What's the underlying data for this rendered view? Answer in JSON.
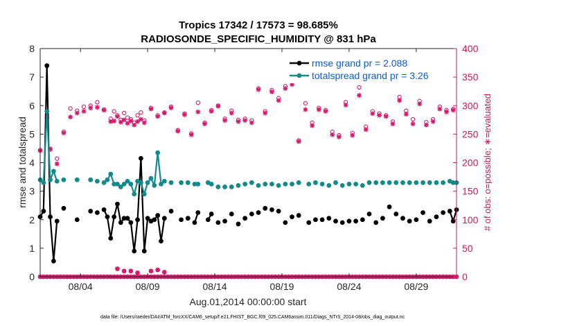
{
  "chart_data": {
    "type": "line",
    "title_line1": "Tropics 17342 / 17573 = 98.685%",
    "title_line2": "RADIOSONDE_SPECIFIC_HUMIDITY @ 831 hPa",
    "ylabel_left": "rmse and totalspread",
    "ylabel_right": "# of obs: o=possible; ∗=evaluated",
    "xlabel": "Aug.01,2014 00:00:00 start",
    "footnote": "data file: /Users/raeder/DAI/ATM_forcXX/CAM6_setup/f.e21.FHIST_BGC.f09_025.CAM6assim.011/Diags_NTrS_2014-08/obs_diag_output.nc",
    "x_range": [
      1.0,
      32.0
    ],
    "ylim_left": [
      0,
      8
    ],
    "ylim_right": [
      0,
      400
    ],
    "left_ticks": [
      "0",
      "1",
      "2",
      "3",
      "4",
      "5",
      "6",
      "7",
      "8"
    ],
    "right_ticks": [
      "0",
      "50",
      "100",
      "150",
      "200",
      "250",
      "300",
      "350",
      "400"
    ],
    "x_ticks": [
      {
        "x": 4,
        "label": "08/04"
      },
      {
        "x": 9,
        "label": "08/09"
      },
      {
        "x": 14,
        "label": "08/14"
      },
      {
        "x": 19,
        "label": "08/19"
      },
      {
        "x": 24,
        "label": "08/24"
      },
      {
        "x": 29,
        "label": "08/29"
      }
    ],
    "colors": {
      "rmse": "#000000",
      "spread": "#138a8a",
      "obs": "#d6186a",
      "legend_text": "#0a5ad8",
      "axis": "#262626"
    },
    "legend": [
      {
        "name": "rmse grand pr = 2.088",
        "series": "rmse"
      },
      {
        "name": "totalspread grand pr = 3.26",
        "series": "spread"
      }
    ],
    "series": [
      {
        "name": "rmse",
        "color": "#000000",
        "points": [
          [
            1.0,
            2.1
          ],
          [
            1.25,
            2.3
          ],
          [
            1.5,
            7.4
          ],
          [
            1.75,
            2.1
          ],
          [
            2.0,
            0.55
          ],
          [
            2.25,
            1.95
          ],
          [
            2.75,
            2.4
          ],
          [
            3.75,
            2.0
          ],
          [
            4.75,
            2.3
          ],
          [
            5.25,
            2.25
          ],
          [
            5.75,
            2.35
          ],
          [
            6.0,
            2.1
          ],
          [
            6.25,
            1.35
          ],
          [
            6.5,
            2.1
          ],
          [
            6.75,
            2.55
          ],
          [
            7.0,
            1.9
          ],
          [
            7.25,
            2.05
          ],
          [
            7.5,
            2.05
          ],
          [
            7.75,
            1.9
          ],
          [
            8.0,
            0.9
          ],
          [
            8.25,
            2.0
          ],
          [
            8.5,
            4.15
          ],
          [
            8.75,
            0.9
          ],
          [
            9.0,
            2.05
          ],
          [
            9.25,
            1.95
          ],
          [
            9.5,
            2.0
          ],
          [
            9.75,
            2.15
          ],
          [
            10.0,
            1.25
          ],
          [
            10.25,
            2.05
          ],
          [
            10.75,
            2.3
          ],
          [
            11.5,
            2.0
          ],
          [
            12.0,
            2.05
          ],
          [
            12.5,
            1.9
          ],
          [
            12.75,
            2.25
          ],
          [
            13.5,
            2.0
          ],
          [
            13.75,
            2.2
          ],
          [
            14.25,
            1.9
          ],
          [
            14.75,
            1.95
          ],
          [
            15.25,
            2.2
          ],
          [
            15.75,
            1.85
          ],
          [
            16.25,
            2.05
          ],
          [
            16.75,
            2.2
          ],
          [
            17.25,
            2.25
          ],
          [
            17.75,
            2.4
          ],
          [
            18.25,
            2.35
          ],
          [
            18.75,
            2.3
          ],
          [
            19.25,
            1.9
          ],
          [
            19.75,
            2.1
          ],
          [
            20.25,
            2.15
          ],
          [
            21.0,
            1.9
          ],
          [
            21.5,
            2.0
          ],
          [
            22.0,
            2.0
          ],
          [
            22.5,
            2.05
          ],
          [
            23.0,
            1.95
          ],
          [
            23.5,
            1.9
          ],
          [
            24.0,
            1.95
          ],
          [
            24.5,
            1.95
          ],
          [
            25.0,
            2.0
          ],
          [
            25.5,
            2.2
          ],
          [
            26.0,
            1.9
          ],
          [
            26.5,
            2.05
          ],
          [
            27.0,
            2.45
          ],
          [
            27.5,
            2.2
          ],
          [
            28.0,
            2.05
          ],
          [
            28.5,
            1.95
          ],
          [
            29.0,
            2.0
          ],
          [
            29.5,
            2.25
          ],
          [
            30.0,
            1.95
          ],
          [
            30.5,
            2.1
          ],
          [
            31.0,
            2.25
          ],
          [
            31.5,
            2.3
          ],
          [
            31.75,
            1.95
          ],
          [
            32.0,
            2.35
          ]
        ]
      },
      {
        "name": "totalspread",
        "color": "#138a8a",
        "points": [
          [
            1.0,
            3.4
          ],
          [
            1.25,
            3.3
          ],
          [
            1.5,
            5.8
          ],
          [
            1.75,
            3.4
          ],
          [
            2.0,
            3.7
          ],
          [
            2.25,
            3.35
          ],
          [
            2.75,
            3.4
          ],
          [
            3.75,
            3.4
          ],
          [
            4.75,
            3.4
          ],
          [
            5.25,
            3.35
          ],
          [
            5.75,
            3.3
          ],
          [
            6.0,
            3.4
          ],
          [
            6.25,
            3.6
          ],
          [
            6.5,
            3.25
          ],
          [
            6.75,
            3.25
          ],
          [
            7.0,
            3.15
          ],
          [
            7.25,
            3.25
          ],
          [
            7.5,
            3.35
          ],
          [
            7.75,
            3.25
          ],
          [
            8.0,
            2.9
          ],
          [
            8.25,
            3.35
          ],
          [
            8.5,
            3.3
          ],
          [
            8.75,
            2.9
          ],
          [
            9.0,
            3.3
          ],
          [
            9.25,
            3.45
          ],
          [
            9.5,
            3.2
          ],
          [
            9.75,
            4.35
          ],
          [
            10.0,
            3.25
          ],
          [
            10.25,
            3.35
          ],
          [
            10.75,
            3.3
          ],
          [
            11.5,
            3.3
          ],
          [
            12.0,
            3.3
          ],
          [
            12.5,
            3.25
          ],
          [
            12.75,
            3.25
          ],
          [
            13.5,
            3.3
          ],
          [
            13.75,
            3.25
          ],
          [
            14.25,
            3.15
          ],
          [
            14.75,
            3.15
          ],
          [
            15.25,
            3.15
          ],
          [
            15.75,
            3.2
          ],
          [
            16.25,
            3.25
          ],
          [
            16.75,
            3.3
          ],
          [
            17.25,
            3.2
          ],
          [
            17.75,
            3.25
          ],
          [
            18.25,
            3.25
          ],
          [
            18.75,
            3.2
          ],
          [
            19.25,
            3.25
          ],
          [
            19.75,
            3.25
          ],
          [
            20.25,
            3.3
          ],
          [
            21.0,
            3.25
          ],
          [
            21.5,
            3.3
          ],
          [
            22.0,
            3.25
          ],
          [
            22.5,
            3.2
          ],
          [
            23.0,
            3.3
          ],
          [
            23.5,
            3.2
          ],
          [
            24.0,
            3.25
          ],
          [
            24.5,
            3.25
          ],
          [
            25.0,
            3.2
          ],
          [
            25.5,
            3.3
          ],
          [
            26.0,
            3.3
          ],
          [
            26.5,
            3.3
          ],
          [
            27.0,
            3.3
          ],
          [
            27.5,
            3.3
          ],
          [
            28.0,
            3.3
          ],
          [
            28.5,
            3.3
          ],
          [
            29.0,
            3.3
          ],
          [
            29.5,
            3.3
          ],
          [
            30.0,
            3.3
          ],
          [
            30.5,
            3.3
          ],
          [
            31.0,
            3.3
          ],
          [
            31.5,
            3.35
          ],
          [
            31.75,
            3.3
          ],
          [
            32.0,
            3.3
          ]
        ]
      }
    ],
    "obs_possible": [
      [
        1.0,
        222
      ],
      [
        1.5,
        284
      ],
      [
        1.75,
        223
      ],
      [
        2.25,
        207
      ],
      [
        2.75,
        254
      ],
      [
        3.25,
        295
      ],
      [
        3.75,
        291
      ],
      [
        4.25,
        298
      ],
      [
        4.75,
        300
      ],
      [
        5.25,
        306
      ],
      [
        5.75,
        293
      ],
      [
        6.25,
        277
      ],
      [
        6.5,
        290
      ],
      [
        6.75,
        283
      ],
      [
        7.0,
        275
      ],
      [
        7.25,
        287
      ],
      [
        7.5,
        279
      ],
      [
        7.75,
        276
      ],
      [
        8.0,
        270
      ],
      [
        8.25,
        283
      ],
      [
        8.5,
        288
      ],
      [
        8.75,
        274
      ],
      [
        9.25,
        296
      ],
      [
        9.75,
        283
      ],
      [
        10.25,
        288
      ],
      [
        10.75,
        298
      ],
      [
        11.25,
        257
      ],
      [
        11.75,
        286
      ],
      [
        12.25,
        251
      ],
      [
        12.75,
        305
      ],
      [
        13.25,
        270
      ],
      [
        13.75,
        292
      ],
      [
        14.25,
        300
      ],
      [
        14.75,
        277
      ],
      [
        15.25,
        291
      ],
      [
        15.75,
        275
      ],
      [
        16.25,
        277
      ],
      [
        16.75,
        274
      ],
      [
        17.25,
        330
      ],
      [
        17.75,
        290
      ],
      [
        18.25,
        327
      ],
      [
        18.75,
        313
      ],
      [
        19.25,
        334
      ],
      [
        19.75,
        341
      ],
      [
        20.25,
        239
      ],
      [
        20.75,
        304
      ],
      [
        21.25,
        270
      ],
      [
        21.75,
        296
      ],
      [
        22.25,
        292
      ],
      [
        22.75,
        254
      ],
      [
        23.25,
        248
      ],
      [
        23.75,
        306
      ],
      [
        24.25,
        252
      ],
      [
        24.75,
        332
      ],
      [
        25.25,
        263
      ],
      [
        25.75,
        290
      ],
      [
        26.25,
        286
      ],
      [
        26.75,
        283
      ],
      [
        27.25,
        272
      ],
      [
        27.75,
        315
      ],
      [
        28.25,
        291
      ],
      [
        28.75,
        276
      ],
      [
        29.25,
        308
      ],
      [
        29.75,
        271
      ],
      [
        30.25,
        276
      ],
      [
        30.75,
        298
      ],
      [
        31.25,
        292
      ],
      [
        31.75,
        294
      ]
    ],
    "obs_evaluated": [
      [
        1.0,
        221
      ],
      [
        1.5,
        279
      ],
      [
        1.75,
        224
      ],
      [
        2.25,
        198
      ],
      [
        2.75,
        252
      ],
      [
        3.25,
        280
      ],
      [
        3.75,
        287
      ],
      [
        4.25,
        290
      ],
      [
        4.75,
        296
      ],
      [
        5.25,
        297
      ],
      [
        5.75,
        292
      ],
      [
        6.25,
        272
      ],
      [
        6.5,
        273
      ],
      [
        6.75,
        281
      ],
      [
        7.0,
        271
      ],
      [
        7.25,
        275
      ],
      [
        7.5,
        269
      ],
      [
        7.75,
        273
      ],
      [
        8.0,
        266
      ],
      [
        8.25,
        272
      ],
      [
        8.5,
        276
      ],
      [
        8.75,
        270
      ],
      [
        9.25,
        294
      ],
      [
        9.75,
        281
      ],
      [
        10.25,
        287
      ],
      [
        10.75,
        296
      ],
      [
        11.25,
        255
      ],
      [
        11.75,
        284
      ],
      [
        12.25,
        249
      ],
      [
        12.75,
        289
      ],
      [
        13.25,
        268
      ],
      [
        13.75,
        290
      ],
      [
        14.25,
        299
      ],
      [
        14.75,
        274
      ],
      [
        15.25,
        287
      ],
      [
        15.75,
        272
      ],
      [
        16.25,
        274
      ],
      [
        16.75,
        270
      ],
      [
        17.25,
        328
      ],
      [
        17.75,
        287
      ],
      [
        18.25,
        324
      ],
      [
        18.75,
        309
      ],
      [
        19.25,
        330
      ],
      [
        19.75,
        337
      ],
      [
        20.25,
        237
      ],
      [
        20.75,
        293
      ],
      [
        21.25,
        265
      ],
      [
        21.75,
        293
      ],
      [
        22.25,
        290
      ],
      [
        22.75,
        249
      ],
      [
        23.25,
        245
      ],
      [
        23.75,
        301
      ],
      [
        24.25,
        248
      ],
      [
        24.75,
        318
      ],
      [
        25.25,
        258
      ],
      [
        25.75,
        286
      ],
      [
        26.25,
        283
      ],
      [
        26.75,
        281
      ],
      [
        27.25,
        268
      ],
      [
        27.75,
        309
      ],
      [
        28.25,
        285
      ],
      [
        28.75,
        268
      ],
      [
        29.25,
        303
      ],
      [
        29.75,
        266
      ],
      [
        30.25,
        272
      ],
      [
        30.75,
        294
      ],
      [
        31.25,
        289
      ],
      [
        31.75,
        292
      ]
    ],
    "obs_baseline_count": 0,
    "obs_baseline_bumps": [
      [
        6.75,
        14
      ],
      [
        7.25,
        10
      ],
      [
        7.75,
        10
      ],
      [
        8.25,
        7
      ],
      [
        9.25,
        10
      ],
      [
        9.75,
        12
      ],
      [
        10.25,
        8
      ]
    ]
  }
}
